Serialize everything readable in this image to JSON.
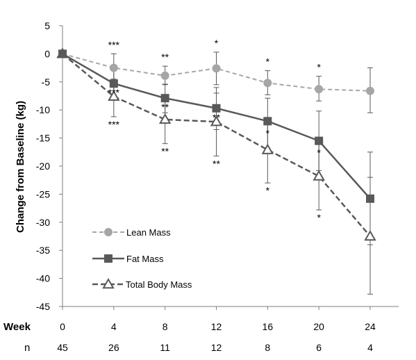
{
  "chart_data": {
    "type": "line",
    "ylabel": "Change from Baseline (kg)",
    "xlabel": "Week",
    "x": [
      0,
      4,
      8,
      12,
      16,
      20,
      24
    ],
    "ylim": [
      -45,
      5
    ],
    "yticks": [
      5,
      0,
      -5,
      -10,
      -15,
      -20,
      -25,
      -30,
      -35,
      -40,
      -45
    ],
    "xtick_row_label": "Week",
    "n_row_label": "n",
    "n_values": [
      45,
      26,
      11,
      12,
      8,
      6,
      4
    ],
    "grid": false,
    "legend_position": "bottom-left",
    "series": [
      {
        "name": "Lean Mass",
        "color": "#a6a6a6",
        "line_style": "dashed",
        "marker": "circle",
        "values": [
          0,
          -2.5,
          -3.9,
          -2.6,
          -5.2,
          -6.3,
          -6.6
        ],
        "error_low": [
          null,
          -5.0,
          -5.5,
          -5.5,
          -7.3,
          -8.4,
          -10.5
        ],
        "error_high": [
          null,
          0.0,
          -2.2,
          0.3,
          -3.0,
          -4.0,
          -2.5
        ],
        "stars": [
          null,
          "***",
          "**",
          "*",
          "*",
          "*",
          null
        ]
      },
      {
        "name": "Fat Mass",
        "color": "#595959",
        "line_style": "solid",
        "marker": "square",
        "values": [
          0,
          -5.3,
          -7.9,
          -9.7,
          -12.0,
          -15.5,
          -25.8
        ],
        "error_low": [
          null,
          -7.5,
          -10.5,
          -13.5,
          -17.0,
          -20.8,
          -34.0
        ],
        "error_high": [
          null,
          -3.0,
          -5.4,
          -6.0,
          -7.9,
          -10.2,
          -17.5
        ],
        "stars": [
          null,
          "***",
          "**",
          "**",
          "*",
          "*",
          null
        ]
      },
      {
        "name": "Total Body Mass",
        "color": "#595959",
        "line_style": "dashed",
        "marker": "triangle",
        "values": [
          0,
          -7.6,
          -11.7,
          -12.1,
          -17.1,
          -21.8,
          -32.5
        ],
        "error_low": [
          null,
          -11.2,
          -16.0,
          -18.2,
          -23.0,
          -27.8,
          -42.8
        ],
        "error_high": [
          null,
          -4.5,
          -7.5,
          -7.0,
          -11.5,
          -16.0,
          -22.0
        ],
        "stars": [
          null,
          "***",
          "**",
          "**",
          "*",
          "*",
          null
        ]
      }
    ]
  }
}
